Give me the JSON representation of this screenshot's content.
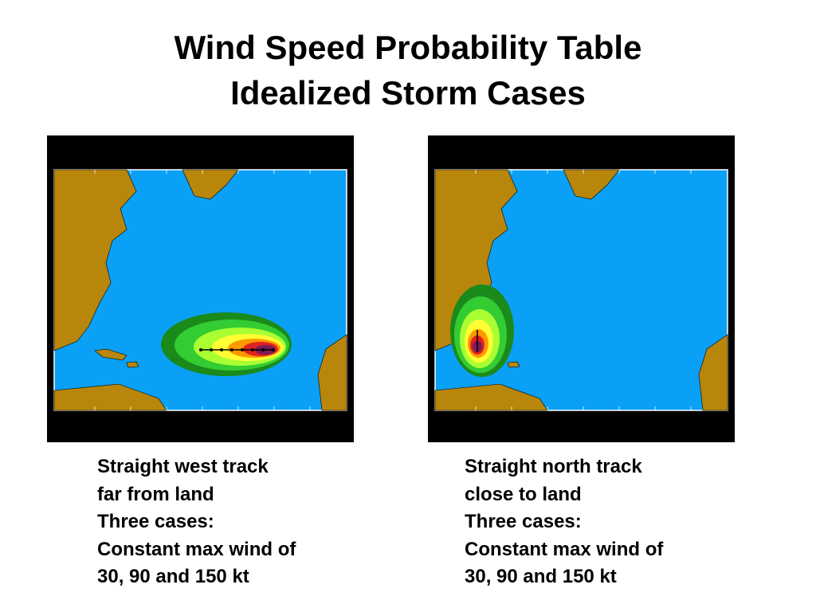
{
  "title": {
    "lines": [
      "Wind Speed Probability Table",
      "Idealized Storm Cases"
    ]
  },
  "panels": [
    {
      "caption": [
        "Straight west track",
        "far from land",
        "Three cases:",
        "Constant max wind of",
        "30, 90 and 150 kt"
      ]
    },
    {
      "caption": [
        "Straight north track",
        "close to land",
        "Three cases:",
        "Constant max wind of",
        "30, 90 and 150 kt"
      ]
    }
  ]
}
